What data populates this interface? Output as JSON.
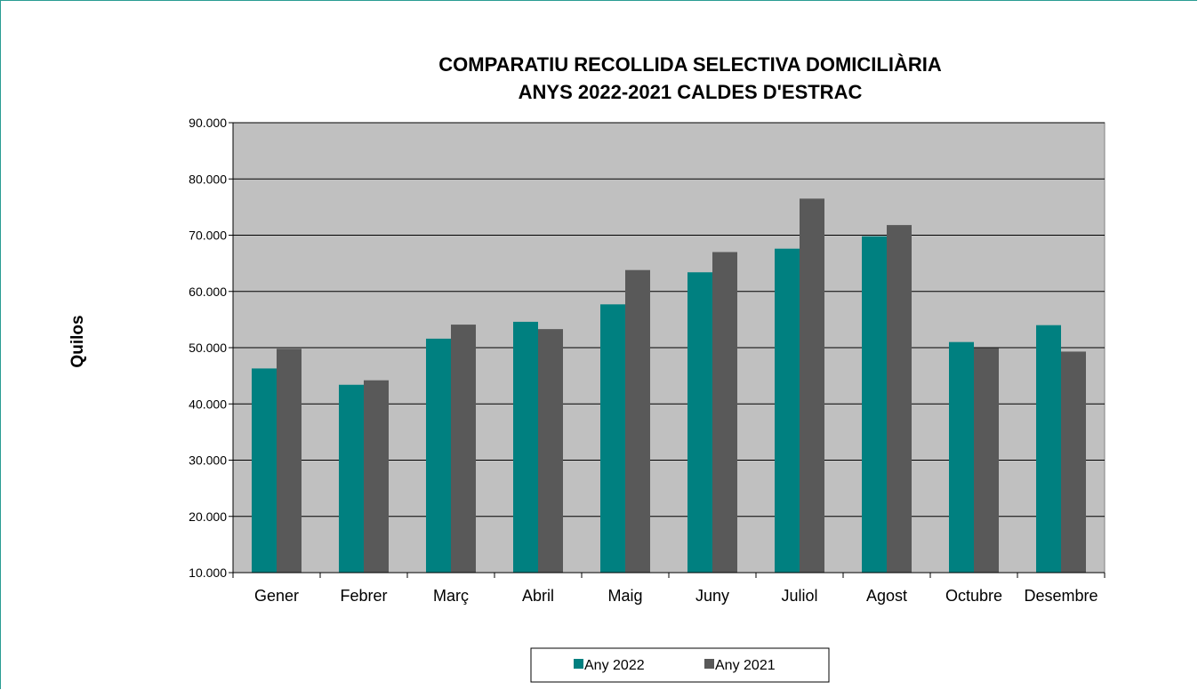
{
  "chart_data": {
    "type": "bar",
    "title": "COMPARATIU RECOLLIDA SELECTIVA DOMICILIÀRIA",
    "subtitle": "ANYS 2022-2021 CALDES D'ESTRAC",
    "xlabel": "",
    "ylabel": "Quilos",
    "ylim": [
      10000,
      90000
    ],
    "yticks": [
      "10.000",
      "20.000",
      "30.000",
      "40.000",
      "50.000",
      "60.000",
      "70.000",
      "80.000",
      "90.000"
    ],
    "grid": true,
    "legend_position": "bottom",
    "categories": [
      "Gener",
      "Febrer",
      "Març",
      "Abril",
      "Maig",
      "Juny",
      "Juliol",
      "Agost",
      "Octubre",
      "Desembre"
    ],
    "series": [
      {
        "name": "Any 2022",
        "color": "#008080",
        "values": [
          46300,
          43400,
          51600,
          54600,
          57700,
          63400,
          67600,
          69800,
          51000,
          54000
        ]
      },
      {
        "name": "Any 2021",
        "color": "#595959",
        "values": [
          49800,
          44200,
          54100,
          53300,
          63800,
          67000,
          76500,
          71800,
          49900,
          49300
        ]
      }
    ],
    "plot_background": "#c0c0c0"
  }
}
